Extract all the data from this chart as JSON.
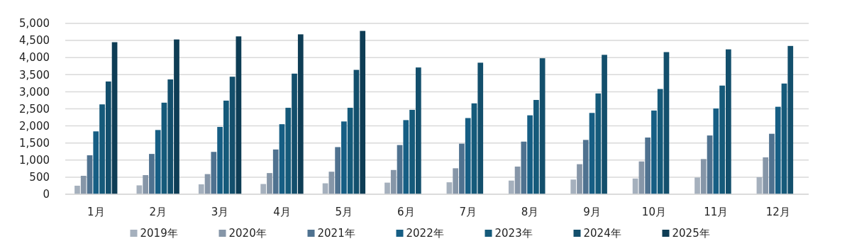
{
  "chart_data": {
    "type": "bar",
    "categories": [
      "1月",
      "2月",
      "3月",
      "4月",
      "5月",
      "6月",
      "7月",
      "8月",
      "9月",
      "10月",
      "11月",
      "12月"
    ],
    "series": [
      {
        "name": "2019年",
        "color": "#a5b0bd",
        "values": [
          250,
          260,
          290,
          300,
          320,
          340,
          350,
          400,
          430,
          460,
          490,
          500
        ]
      },
      {
        "name": "2020年",
        "color": "#8696a8",
        "values": [
          540,
          560,
          590,
          620,
          660,
          710,
          760,
          810,
          880,
          960,
          1030,
          1080
        ]
      },
      {
        "name": "2021年",
        "color": "#4f7290",
        "values": [
          1140,
          1180,
          1240,
          1310,
          1380,
          1440,
          1480,
          1540,
          1590,
          1660,
          1720,
          1770
        ]
      },
      {
        "name": "2022年",
        "color": "#165e84",
        "values": [
          1840,
          1880,
          1970,
          2050,
          2130,
          2170,
          2230,
          2310,
          2380,
          2450,
          2510,
          2560
        ]
      },
      {
        "name": "2023年",
        "color": "#155a7a",
        "values": [
          2630,
          2680,
          2740,
          2530,
          2530,
          2470,
          2660,
          2760,
          2950,
          3080,
          3180,
          3240
        ]
      },
      {
        "name": "2024年",
        "color": "#134f6c",
        "values": [
          3300,
          3360,
          3440,
          3530,
          3640,
          3710,
          3850,
          3980,
          4080,
          4160,
          4240,
          4340
        ]
      },
      {
        "name": "2025年",
        "color": "#0e3d55",
        "values": [
          4450,
          4530,
          4620,
          4680,
          4780,
          null,
          null,
          null,
          null,
          null,
          null,
          null
        ]
      }
    ],
    "ylim": [
      0,
      5000
    ],
    "yticks": [
      {
        "value": 0,
        "label": "0"
      },
      {
        "value": 500,
        "label": "500"
      },
      {
        "value": 1000,
        "label": "1,000"
      },
      {
        "value": 1500,
        "label": "1,500"
      },
      {
        "value": 2000,
        "label": "2,000"
      },
      {
        "value": 2500,
        "label": "2,500"
      },
      {
        "value": 3000,
        "label": "3,000"
      },
      {
        "value": 3500,
        "label": "3,500"
      },
      {
        "value": 4000,
        "label": "4,000"
      },
      {
        "value": 4500,
        "label": "4,500"
      },
      {
        "value": 5000,
        "label": "5,000"
      }
    ],
    "grid": "y",
    "legend": "bottom"
  }
}
